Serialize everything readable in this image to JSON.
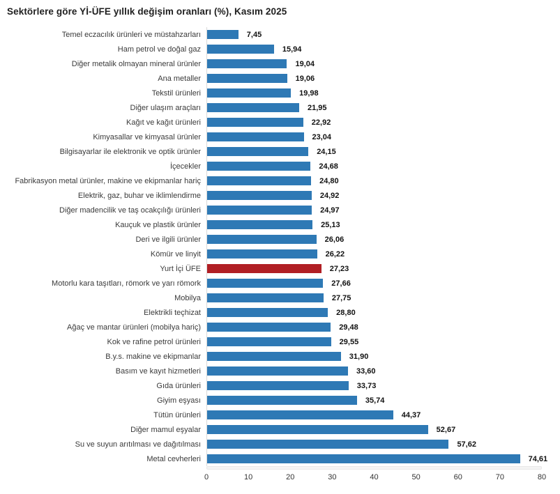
{
  "colors": {
    "bar": "#2e79b5",
    "highlight_bar": "#b11f24",
    "axis_line": "#d9d9d9",
    "title_text": "#1f1f1f",
    "label_text": "#3a3a3a",
    "value_text": "#111111"
  },
  "chart_data": {
    "type": "bar",
    "orientation": "horizontal",
    "title": "Sektörlere göre Yİ-ÜFE yıllık değişim oranları (%), Kasım 2025",
    "xlabel": "",
    "ylabel": "",
    "xlim": [
      0,
      80
    ],
    "x_ticks": [
      0,
      10,
      20,
      30,
      40,
      50,
      60,
      70,
      80
    ],
    "grid": false,
    "legend": false,
    "highlight_category": "Yurt İçi ÜFE",
    "categories": [
      "Temel eczacılık ürünleri ve müstahzarları",
      "Ham petrol ve doğal gaz",
      "Diğer metalik olmayan mineral ürünler",
      "Ana metaller",
      "Tekstil ürünleri",
      "Diğer ulaşım araçları",
      "Kağıt ve kağıt ürünleri",
      "Kimyasallar ve kimyasal ürünler",
      "Bilgisayarlar ile elektronik ve optik ürünler",
      "İçecekler",
      "Fabrikasyon metal ürünler, makine ve ekipmanlar hariç",
      "Elektrik, gaz, buhar ve iklimlendirme",
      "Diğer madencilik ve taş ocakçılığı ürünleri",
      "Kauçuk ve plastik ürünler",
      "Deri ve ilgili ürünler",
      "Kömür ve linyit",
      "Yurt İçi ÜFE",
      "Motorlu kara taşıtları, römork ve yarı römork",
      "Mobilya",
      "Elektrikli teçhizat",
      "Ağaç ve mantar ürünleri (mobilya hariç)",
      "Kok ve rafine petrol ürünleri",
      "B.y.s. makine ve ekipmanlar",
      "Basım ve kayıt hizmetleri",
      "Gıda ürünleri",
      "Giyim eşyası",
      "Tütün ürünleri",
      "Diğer mamul eşyalar",
      "Su ve suyun arıtılması ve dağıtılması",
      "Metal cevherleri"
    ],
    "values": [
      7.45,
      15.94,
      19.04,
      19.06,
      19.98,
      21.95,
      22.92,
      23.04,
      24.15,
      24.68,
      24.8,
      24.92,
      24.97,
      25.13,
      26.06,
      26.22,
      27.23,
      27.66,
      27.75,
      28.8,
      29.48,
      29.55,
      31.9,
      33.6,
      33.73,
      35.74,
      44.37,
      52.67,
      57.62,
      74.61
    ],
    "value_labels": [
      "7,45",
      "15,94",
      "19,04",
      "19,06",
      "19,98",
      "21,95",
      "22,92",
      "23,04",
      "24,15",
      "24,68",
      "24,80",
      "24,92",
      "24,97",
      "25,13",
      "26,06",
      "26,22",
      "27,23",
      "27,66",
      "27,75",
      "28,80",
      "29,48",
      "29,55",
      "31,90",
      "33,60",
      "33,73",
      "35,74",
      "44,37",
      "52,67",
      "57,62",
      "74,61"
    ]
  }
}
